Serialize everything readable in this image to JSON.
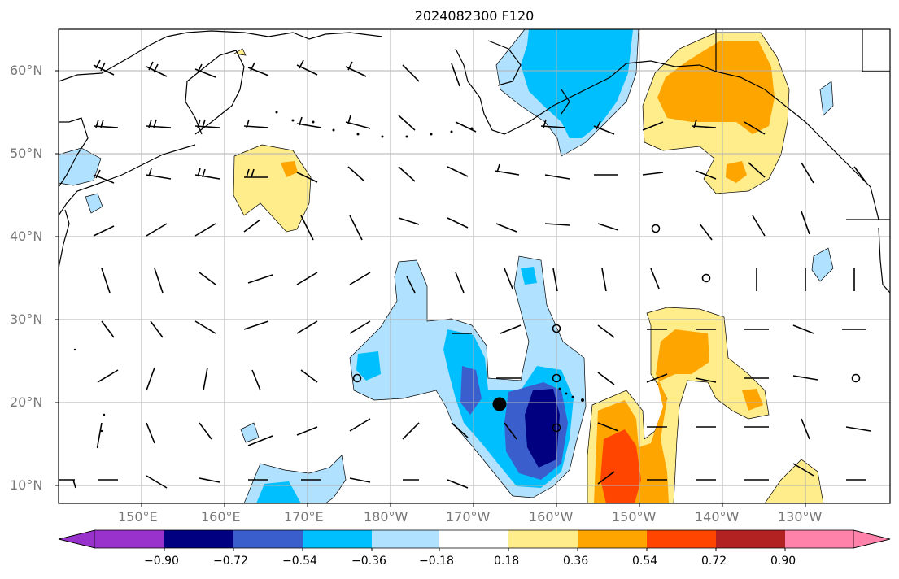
{
  "title": "2024082300 F120",
  "lat_labels": [
    "60°N",
    "50°N",
    "40°N",
    "30°N",
    "20°N",
    "10°N"
  ],
  "lon_labels": [
    "150°E",
    "160°E",
    "170°E",
    "180°W",
    "170°W",
    "160°W",
    "150°W",
    "140°W",
    "130°W"
  ],
  "colorbar": {
    "ticks": [
      "−0.90",
      "−0.72",
      "−0.54",
      "−0.36",
      "−0.18",
      "0.18",
      "0.36",
      "0.54",
      "0.72",
      "0.90"
    ],
    "colors": [
      "#9932cc",
      "#000080",
      "#3a5fcd",
      "#00bfff",
      "#b0e2ff",
      "#ffffff",
      "#ffec8b",
      "#ffa500",
      "#ff4500",
      "#b22222",
      "#ff82ab"
    ]
  },
  "fill_colors": {
    "light_blue": "#b0e2ff",
    "deep_sky": "#00bfff",
    "royal_blue": "#3a5fcd",
    "navy": "#000080",
    "light_yellow": "#ffec8b",
    "orange": "#ffa500",
    "orange_red": "#ff4500"
  },
  "map": {
    "lon_range": [
      140,
      252
    ],
    "lat_range": [
      8,
      65
    ],
    "grid": true
  }
}
